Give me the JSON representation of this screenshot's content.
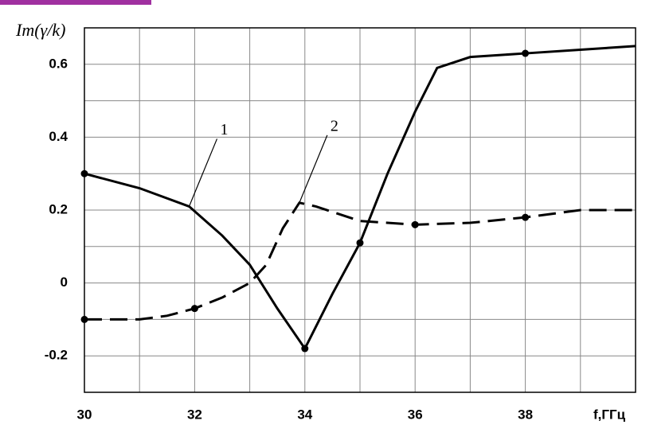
{
  "chart_data": {
    "type": "line",
    "ylabel": "Im(γ/k)",
    "xlabel": "f,ГГц",
    "xlim": [
      30,
      40
    ],
    "ylim": [
      -0.3,
      0.7
    ],
    "xticks": [
      30,
      32,
      34,
      36,
      38
    ],
    "yticks": [
      -0.2,
      0,
      0.2,
      0.4,
      0.6
    ],
    "minor_xticks": [
      31,
      33,
      35,
      37,
      39
    ],
    "minor_yticks": [
      -0.3,
      -0.1,
      0.1,
      0.3,
      0.5,
      0.7
    ],
    "grid": true,
    "series": [
      {
        "name": "1",
        "color": "#000000",
        "dashed": false,
        "x": [
          30,
          31,
          31.9,
          32.5,
          33,
          33.5,
          34,
          34.5,
          35,
          35.5,
          36,
          36.4,
          37,
          38,
          39,
          40
        ],
        "values": [
          0.3,
          0.26,
          0.21,
          0.13,
          0.05,
          -0.07,
          -0.18,
          -0.03,
          0.11,
          0.3,
          0.47,
          0.59,
          0.62,
          0.63,
          0.64,
          0.65
        ],
        "marker_index": [
          0,
          6,
          8,
          13
        ]
      },
      {
        "name": "2",
        "color": "#000000",
        "dashed": true,
        "x": [
          30,
          31,
          31.5,
          32,
          32.5,
          33,
          33.3,
          33.6,
          33.9,
          34.2,
          35,
          36,
          37,
          38,
          39,
          40
        ],
        "values": [
          -0.1,
          -0.1,
          -0.09,
          -0.07,
          -0.04,
          0.0,
          0.05,
          0.15,
          0.22,
          0.21,
          0.17,
          0.16,
          0.165,
          0.18,
          0.2,
          0.2
        ],
        "marker_index": [
          0,
          3,
          11,
          13
        ]
      }
    ],
    "annotations": [
      {
        "text": "1",
        "x": 31.9,
        "y": 0.21
      },
      {
        "text": "2",
        "x": 33.9,
        "y": 0.22
      }
    ]
  }
}
